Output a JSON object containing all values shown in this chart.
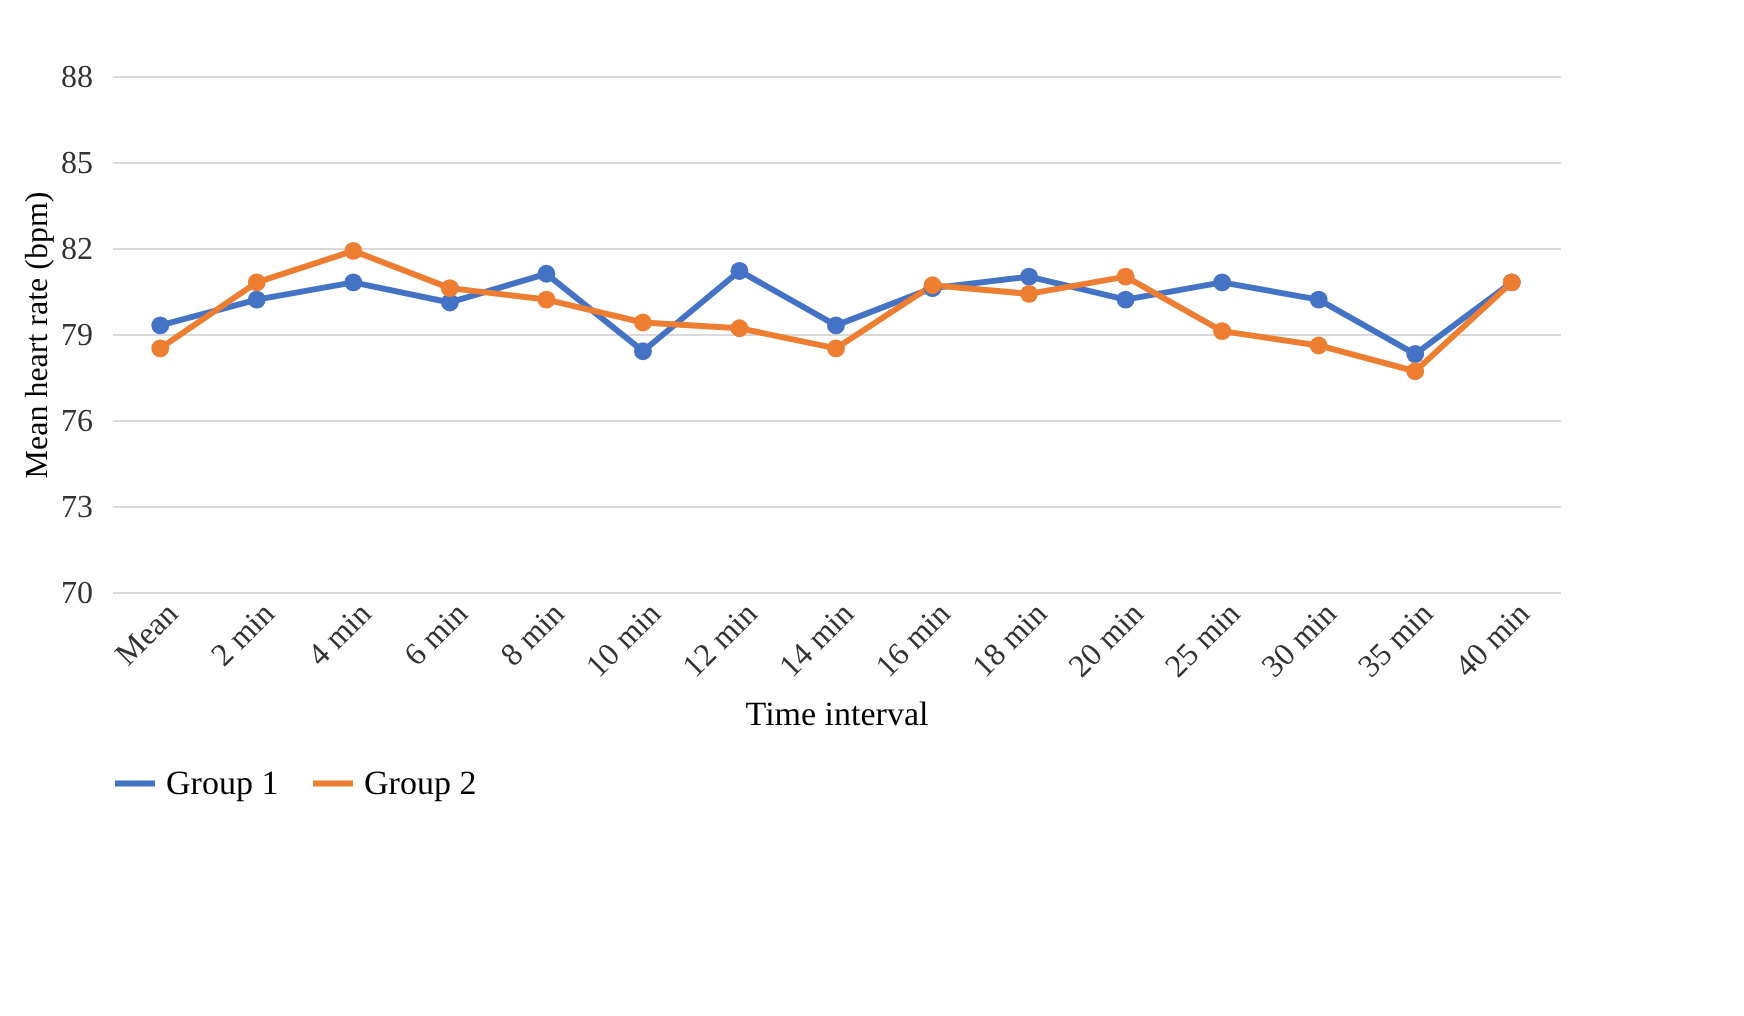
{
  "chart_data": {
    "type": "line",
    "xlabel": "Time interval",
    "ylabel": "Mean heart rate (bpm)",
    "categories": [
      "Mean",
      "2 min",
      "4 min",
      "6 min",
      "8 min",
      "10 min",
      "12 min",
      "14 min",
      "16 min",
      "18 min",
      "20 min",
      "25 min",
      "30 min",
      "35 min",
      "40 min"
    ],
    "series": [
      {
        "name": "Group 1",
        "color": "#4472c4",
        "values": [
          79.3,
          80.2,
          80.8,
          80.1,
          81.1,
          78.4,
          81.2,
          79.3,
          80.6,
          81.0,
          80.2,
          80.8,
          80.2,
          78.3,
          80.8
        ]
      },
      {
        "name": "Group 2",
        "color": "#ed7d31",
        "values": [
          78.5,
          80.8,
          81.9,
          80.6,
          80.2,
          79.4,
          79.2,
          78.5,
          80.7,
          80.4,
          81.0,
          79.1,
          78.6,
          77.7,
          80.8
        ]
      }
    ],
    "ylim": [
      70,
      88
    ],
    "yticks": [
      70,
      73,
      76,
      79,
      82,
      85,
      88
    ],
    "grid": "y",
    "legend": "bottom",
    "marker": "circle",
    "line_style": "solid"
  }
}
